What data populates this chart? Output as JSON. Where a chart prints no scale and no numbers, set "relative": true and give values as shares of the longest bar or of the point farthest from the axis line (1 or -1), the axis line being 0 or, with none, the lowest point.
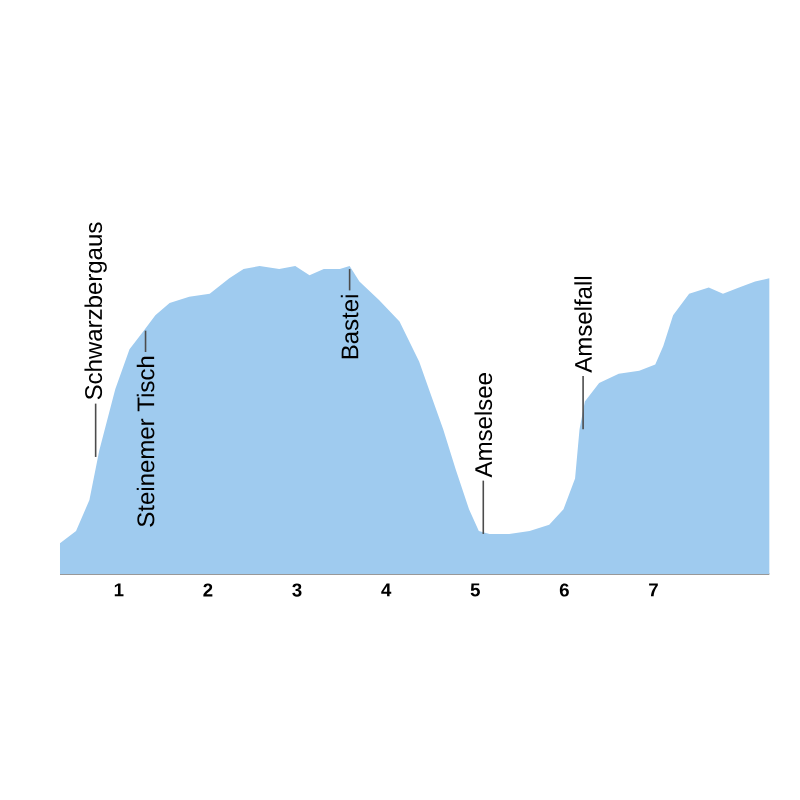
{
  "chart_data": {
    "type": "area",
    "relative": true,
    "color": "#9fcbef",
    "x": [
      0.34,
      0.52,
      0.67,
      0.78,
      0.96,
      1.12,
      1.28,
      1.41,
      1.57,
      1.79,
      2.02,
      2.24,
      2.4,
      2.58,
      2.8,
      2.98,
      3.14,
      3.3,
      3.48,
      3.59,
      3.7,
      3.92,
      4.15,
      4.37,
      4.48,
      4.64,
      4.78,
      4.93,
      5.04,
      5.16,
      5.38,
      5.61,
      5.83,
      5.99,
      6.12,
      6.17,
      6.23,
      6.39,
      6.61,
      6.84,
      7.02,
      7.11,
      7.22,
      7.4,
      7.62,
      7.78,
      7.96,
      8.14,
      8.3
    ],
    "values": [
      0.1,
      0.14,
      0.24,
      0.4,
      0.6,
      0.73,
      0.79,
      0.84,
      0.88,
      0.9,
      0.91,
      0.96,
      0.99,
      1.0,
      0.99,
      1.0,
      0.97,
      0.99,
      0.99,
      1.0,
      0.95,
      0.89,
      0.82,
      0.69,
      0.6,
      0.47,
      0.34,
      0.21,
      0.14,
      0.13,
      0.13,
      0.14,
      0.16,
      0.21,
      0.31,
      0.47,
      0.56,
      0.62,
      0.65,
      0.66,
      0.68,
      0.74,
      0.84,
      0.91,
      0.93,
      0.91,
      0.93,
      0.95,
      0.96
    ],
    "xlim": [
      0.34,
      8.3
    ],
    "xticks": [
      1,
      2,
      3,
      4,
      5,
      6,
      7
    ],
    "annotations": [
      {
        "text": "Schwarzbergaus",
        "x": 0.74,
        "y": 0.38
      },
      {
        "text": "Steinemer Tisch",
        "x": 1.3,
        "y": 0.79
      },
      {
        "text": "Bastei",
        "x": 3.59,
        "y": 0.99
      },
      {
        "text": "Amselsee",
        "x": 5.09,
        "y": 0.13
      },
      {
        "text": "Amselfall",
        "x": 6.21,
        "y": 0.47
      }
    ]
  }
}
